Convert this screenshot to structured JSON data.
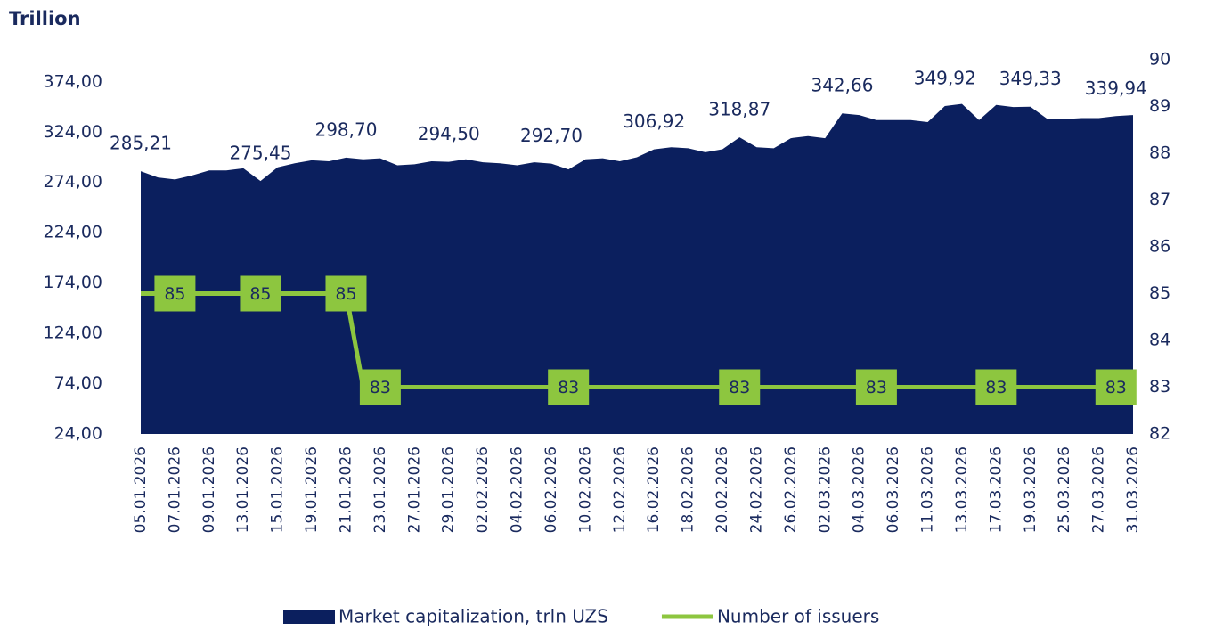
{
  "chart_data": {
    "type": "area-line",
    "y_axis_label": "Trillion",
    "categories": [
      "05.01.2026",
      null,
      "07.01.2026",
      null,
      "09.01.2026",
      null,
      "13.01.2026",
      null,
      "15.01.2026",
      null,
      "19.01.2026",
      null,
      "21.01.2026",
      null,
      "23.01.2026",
      null,
      "27.01.2026",
      null,
      "29.01.2026",
      null,
      "02.02.2026",
      null,
      "04.02.2026",
      null,
      "06.02.2026",
      null,
      "10.02.2026",
      null,
      "12.02.2026",
      null,
      "16.02.2026",
      null,
      "18.02.2026",
      null,
      "20.02.2026",
      null,
      "24.02.2026",
      null,
      "26.02.2026",
      null,
      "02.03.2026",
      null,
      "04.03.2026",
      null,
      "06.03.2026",
      null,
      "11.03.2026",
      null,
      "13.03.2026",
      null,
      "17.03.2026",
      null,
      "19.03.2026",
      null,
      "25.03.2026",
      null,
      "27.03.2026",
      null,
      "31.03.2026"
    ],
    "series": [
      {
        "name": "Market capitalization, trln UZS",
        "type": "area",
        "color": "#0b1f5e",
        "values": [
          285.21,
          279,
          277,
          281,
          286,
          286,
          288,
          275.45,
          289,
          293,
          296,
          295,
          298.7,
          297,
          298,
          291,
          292,
          295,
          294.5,
          297,
          294,
          293,
          291,
          294,
          292.7,
          287,
          297,
          298,
          295,
          299,
          306.92,
          309,
          308,
          304,
          307,
          318.87,
          309,
          308,
          318,
          320,
          318,
          342.66,
          341,
          336,
          336,
          336,
          334,
          349.92,
          352,
          336,
          351,
          349,
          349.33,
          337,
          337,
          338,
          338,
          339.94,
          341
        ],
        "value_labels": [
          "285,21",
          null,
          null,
          null,
          null,
          null,
          null,
          "275,45",
          null,
          null,
          null,
          null,
          "298,70",
          null,
          null,
          null,
          null,
          null,
          "294,50",
          null,
          null,
          null,
          null,
          null,
          "292,70",
          null,
          null,
          null,
          null,
          null,
          "306,92",
          null,
          null,
          null,
          null,
          "318,87",
          null,
          null,
          null,
          null,
          null,
          "342,66",
          null,
          null,
          null,
          null,
          null,
          "349,92",
          null,
          null,
          null,
          null,
          "349,33",
          null,
          null,
          null,
          null,
          "339,94",
          null
        ]
      },
      {
        "name": "Number of issuers",
        "type": "line",
        "axis": "y2",
        "color": "#8dc63f",
        "values": [
          85,
          85,
          85,
          85,
          85,
          85,
          85,
          85,
          85,
          85,
          85,
          85,
          85,
          83,
          83,
          83,
          83,
          83,
          83,
          83,
          83,
          83,
          83,
          83,
          83,
          83,
          83,
          83,
          83,
          83,
          83,
          83,
          83,
          83,
          83,
          83,
          83,
          83,
          83,
          83,
          83,
          83,
          83,
          83,
          83,
          83,
          83,
          83,
          83,
          83,
          83,
          83,
          83,
          83,
          83,
          83,
          83,
          83,
          83
        ],
        "value_labels": [
          null,
          null,
          "85",
          null,
          null,
          null,
          null,
          "85",
          null,
          null,
          null,
          null,
          "85",
          null,
          "83",
          null,
          null,
          null,
          null,
          null,
          null,
          null,
          null,
          null,
          null,
          "83",
          null,
          null,
          null,
          null,
          null,
          null,
          null,
          null,
          null,
          "83",
          null,
          null,
          null,
          null,
          null,
          null,
          null,
          "83",
          null,
          null,
          null,
          null,
          null,
          null,
          "83",
          null,
          null,
          null,
          null,
          null,
          null,
          "83",
          null
        ]
      }
    ],
    "ylim": [
      24,
      396
    ],
    "yticks": [
      {
        "value": 24,
        "label": "24,00"
      },
      {
        "value": 74,
        "label": "74,00"
      },
      {
        "value": 124,
        "label": "124,00"
      },
      {
        "value": 174,
        "label": "174,00"
      },
      {
        "value": 224,
        "label": "224,00"
      },
      {
        "value": 274,
        "label": "274,00"
      },
      {
        "value": 324,
        "label": "324,00"
      },
      {
        "value": 374,
        "label": "374,00"
      }
    ],
    "y2lim": [
      82,
      90
    ],
    "y2ticks": [
      82,
      83,
      84,
      85,
      86,
      87,
      88,
      89,
      90
    ],
    "legend": "bottom"
  }
}
